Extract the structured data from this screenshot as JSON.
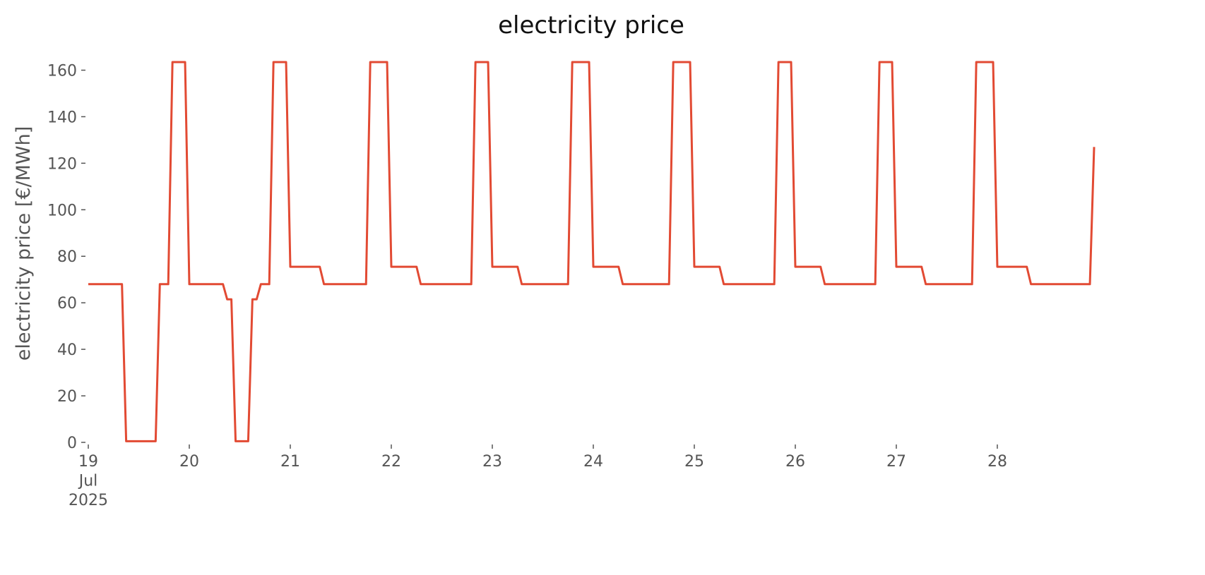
{
  "chart_data": {
    "type": "line",
    "title": "electricity price",
    "ylabel": "electricity price [€/MWh]",
    "xlim": [
      "2025-07-19 00:00",
      "2025-07-28 23:00"
    ],
    "xticks": [
      {
        "value": "2025-07-19 00:00",
        "label": "19\nJul\n2025"
      },
      {
        "value": "2025-07-20 00:00",
        "label": "20"
      },
      {
        "value": "2025-07-21 00:00",
        "label": "21"
      },
      {
        "value": "2025-07-22 00:00",
        "label": "22"
      },
      {
        "value": "2025-07-23 00:00",
        "label": "23"
      },
      {
        "value": "2025-07-24 00:00",
        "label": "24"
      },
      {
        "value": "2025-07-25 00:00",
        "label": "25"
      },
      {
        "value": "2025-07-26 00:00",
        "label": "26"
      },
      {
        "value": "2025-07-27 00:00",
        "label": "27"
      },
      {
        "value": "2025-07-28 00:00",
        "label": "28"
      }
    ],
    "ylim": [
      0,
      165
    ],
    "yticks": [
      0,
      20,
      40,
      60,
      80,
      100,
      120,
      140,
      160
    ],
    "x": [
      "2025-07-19 00:00",
      "2025-07-19 01:00",
      "2025-07-19 02:00",
      "2025-07-19 03:00",
      "2025-07-19 04:00",
      "2025-07-19 05:00",
      "2025-07-19 06:00",
      "2025-07-19 07:00",
      "2025-07-19 08:00",
      "2025-07-19 09:00",
      "2025-07-19 10:00",
      "2025-07-19 11:00",
      "2025-07-19 12:00",
      "2025-07-19 13:00",
      "2025-07-19 14:00",
      "2025-07-19 15:00",
      "2025-07-19 16:00",
      "2025-07-19 17:00",
      "2025-07-19 18:00",
      "2025-07-19 19:00",
      "2025-07-19 20:00",
      "2025-07-19 21:00",
      "2025-07-19 22:00",
      "2025-07-19 23:00",
      "2025-07-20 00:00",
      "2025-07-20 01:00",
      "2025-07-20 02:00",
      "2025-07-20 03:00",
      "2025-07-20 04:00",
      "2025-07-20 05:00",
      "2025-07-20 06:00",
      "2025-07-20 07:00",
      "2025-07-20 08:00",
      "2025-07-20 09:00",
      "2025-07-20 10:00",
      "2025-07-20 11:00",
      "2025-07-20 12:00",
      "2025-07-20 13:00",
      "2025-07-20 14:00",
      "2025-07-20 15:00",
      "2025-07-20 16:00",
      "2025-07-20 17:00",
      "2025-07-20 18:00",
      "2025-07-20 19:00",
      "2025-07-20 20:00",
      "2025-07-20 21:00",
      "2025-07-20 22:00",
      "2025-07-20 23:00",
      "2025-07-21 00:00",
      "2025-07-21 01:00",
      "2025-07-21 02:00",
      "2025-07-21 03:00",
      "2025-07-21 04:00",
      "2025-07-21 05:00",
      "2025-07-21 06:00",
      "2025-07-21 07:00",
      "2025-07-21 08:00",
      "2025-07-21 09:00",
      "2025-07-21 10:00",
      "2025-07-21 11:00",
      "2025-07-21 12:00",
      "2025-07-21 13:00",
      "2025-07-21 14:00",
      "2025-07-21 15:00",
      "2025-07-21 16:00",
      "2025-07-21 17:00",
      "2025-07-21 18:00",
      "2025-07-21 19:00",
      "2025-07-21 20:00",
      "2025-07-21 21:00",
      "2025-07-21 22:00",
      "2025-07-21 23:00",
      "2025-07-22 00:00",
      "2025-07-22 01:00",
      "2025-07-22 02:00",
      "2025-07-22 03:00",
      "2025-07-22 04:00",
      "2025-07-22 05:00",
      "2025-07-22 06:00",
      "2025-07-22 07:00",
      "2025-07-22 08:00",
      "2025-07-22 09:00",
      "2025-07-22 10:00",
      "2025-07-22 11:00",
      "2025-07-22 12:00",
      "2025-07-22 13:00",
      "2025-07-22 14:00",
      "2025-07-22 15:00",
      "2025-07-22 16:00",
      "2025-07-22 17:00",
      "2025-07-22 18:00",
      "2025-07-22 19:00",
      "2025-07-22 20:00",
      "2025-07-22 21:00",
      "2025-07-22 22:00",
      "2025-07-22 23:00",
      "2025-07-23 00:00",
      "2025-07-23 01:00",
      "2025-07-23 02:00",
      "2025-07-23 03:00",
      "2025-07-23 04:00",
      "2025-07-23 05:00",
      "2025-07-23 06:00",
      "2025-07-23 07:00",
      "2025-07-23 08:00",
      "2025-07-23 09:00",
      "2025-07-23 10:00",
      "2025-07-23 11:00",
      "2025-07-23 12:00",
      "2025-07-23 13:00",
      "2025-07-23 14:00",
      "2025-07-23 15:00",
      "2025-07-23 16:00",
      "2025-07-23 17:00",
      "2025-07-23 18:00",
      "2025-07-23 19:00",
      "2025-07-23 20:00",
      "2025-07-23 21:00",
      "2025-07-23 22:00",
      "2025-07-23 23:00",
      "2025-07-24 00:00",
      "2025-07-24 01:00",
      "2025-07-24 02:00",
      "2025-07-24 03:00",
      "2025-07-24 04:00",
      "2025-07-24 05:00",
      "2025-07-24 06:00",
      "2025-07-24 07:00",
      "2025-07-24 08:00",
      "2025-07-24 09:00",
      "2025-07-24 10:00",
      "2025-07-24 11:00",
      "2025-07-24 12:00",
      "2025-07-24 13:00",
      "2025-07-24 14:00",
      "2025-07-24 15:00",
      "2025-07-24 16:00",
      "2025-07-24 17:00",
      "2025-07-24 18:00",
      "2025-07-24 19:00",
      "2025-07-24 20:00",
      "2025-07-24 21:00",
      "2025-07-24 22:00",
      "2025-07-24 23:00",
      "2025-07-25 00:00",
      "2025-07-25 01:00",
      "2025-07-25 02:00",
      "2025-07-25 03:00",
      "2025-07-25 04:00",
      "2025-07-25 05:00",
      "2025-07-25 06:00",
      "2025-07-25 07:00",
      "2025-07-25 08:00",
      "2025-07-25 09:00",
      "2025-07-25 10:00",
      "2025-07-25 11:00",
      "2025-07-25 12:00",
      "2025-07-25 13:00",
      "2025-07-25 14:00",
      "2025-07-25 15:00",
      "2025-07-25 16:00",
      "2025-07-25 17:00",
      "2025-07-25 18:00",
      "2025-07-25 19:00",
      "2025-07-25 20:00",
      "2025-07-25 21:00",
      "2025-07-25 22:00",
      "2025-07-25 23:00",
      "2025-07-26 00:00",
      "2025-07-26 01:00",
      "2025-07-26 02:00",
      "2025-07-26 03:00",
      "2025-07-26 04:00",
      "2025-07-26 05:00",
      "2025-07-26 06:00",
      "2025-07-26 07:00",
      "2025-07-26 08:00",
      "2025-07-26 09:00",
      "2025-07-26 10:00",
      "2025-07-26 11:00",
      "2025-07-26 12:00",
      "2025-07-26 13:00",
      "2025-07-26 14:00",
      "2025-07-26 15:00",
      "2025-07-26 16:00",
      "2025-07-26 17:00",
      "2025-07-26 18:00",
      "2025-07-26 19:00",
      "2025-07-26 20:00",
      "2025-07-26 21:00",
      "2025-07-26 22:00",
      "2025-07-26 23:00",
      "2025-07-27 00:00",
      "2025-07-27 01:00",
      "2025-07-27 02:00",
      "2025-07-27 03:00",
      "2025-07-27 04:00",
      "2025-07-27 05:00",
      "2025-07-27 06:00",
      "2025-07-27 07:00",
      "2025-07-27 08:00",
      "2025-07-27 09:00",
      "2025-07-27 10:00",
      "2025-07-27 11:00",
      "2025-07-27 12:00",
      "2025-07-27 13:00",
      "2025-07-27 14:00",
      "2025-07-27 15:00",
      "2025-07-27 16:00",
      "2025-07-27 17:00",
      "2025-07-27 18:00",
      "2025-07-27 19:00",
      "2025-07-27 20:00",
      "2025-07-27 21:00",
      "2025-07-27 22:00",
      "2025-07-27 23:00",
      "2025-07-28 00:00",
      "2025-07-28 01:00",
      "2025-07-28 02:00",
      "2025-07-28 03:00",
      "2025-07-28 04:00",
      "2025-07-28 05:00",
      "2025-07-28 06:00",
      "2025-07-28 07:00",
      "2025-07-28 08:00",
      "2025-07-28 09:00",
      "2025-07-28 10:00",
      "2025-07-28 11:00",
      "2025-07-28 12:00",
      "2025-07-28 13:00",
      "2025-07-28 14:00",
      "2025-07-28 15:00",
      "2025-07-28 16:00",
      "2025-07-28 17:00",
      "2025-07-28 18:00",
      "2025-07-28 19:00",
      "2025-07-28 20:00",
      "2025-07-28 21:00",
      "2025-07-28 22:00",
      "2025-07-28 23:00"
    ],
    "series": [
      {
        "name": "electricity price",
        "color": "#e24a33",
        "values": [
          68,
          68,
          68,
          68,
          68,
          68,
          68,
          68,
          68,
          0.5,
          0.5,
          0.5,
          0.5,
          0.5,
          0.5,
          0.5,
          0.5,
          68,
          68,
          68,
          163.5,
          163.5,
          163.5,
          163.5,
          68,
          68,
          68,
          68,
          68,
          68,
          68,
          68,
          68,
          61.5,
          61.5,
          0.5,
          0.5,
          0.5,
          0.5,
          61.5,
          61.5,
          68,
          68,
          68,
          163.5,
          163.5,
          163.5,
          163.5,
          75.5,
          75.5,
          75.5,
          75.5,
          75.5,
          75.5,
          75.5,
          75.5,
          68,
          68,
          68,
          68,
          68,
          68,
          68,
          68,
          68,
          68,
          68,
          163.5,
          163.5,
          163.5,
          163.5,
          163.5,
          75.5,
          75.5,
          75.5,
          75.5,
          75.5,
          75.5,
          75.5,
          68,
          68,
          68,
          68,
          68,
          68,
          68,
          68,
          68,
          68,
          68,
          68,
          68,
          163.5,
          163.5,
          163.5,
          163.5,
          75.5,
          75.5,
          75.5,
          75.5,
          75.5,
          75.5,
          75.5,
          68,
          68,
          68,
          68,
          68,
          68,
          68,
          68,
          68,
          68,
          68,
          68,
          163.5,
          163.5,
          163.5,
          163.5,
          163.5,
          75.5,
          75.5,
          75.5,
          75.5,
          75.5,
          75.5,
          75.5,
          68,
          68,
          68,
          68,
          68,
          68,
          68,
          68,
          68,
          68,
          68,
          68,
          163.5,
          163.5,
          163.5,
          163.5,
          163.5,
          75.5,
          75.5,
          75.5,
          75.5,
          75.5,
          75.5,
          75.5,
          68,
          68,
          68,
          68,
          68,
          68,
          68,
          68,
          68,
          68,
          68,
          68,
          68,
          163.5,
          163.5,
          163.5,
          163.5,
          75.5,
          75.5,
          75.5,
          75.5,
          75.5,
          75.5,
          75.5,
          68,
          68,
          68,
          68,
          68,
          68,
          68,
          68,
          68,
          68,
          68,
          68,
          68,
          163.5,
          163.5,
          163.5,
          163.5,
          75.5,
          75.5,
          75.5,
          75.5,
          75.5,
          75.5,
          75.5,
          68,
          68,
          68,
          68,
          68,
          68,
          68,
          68,
          68,
          68,
          68,
          68,
          163.5,
          163.5,
          163.5,
          163.5,
          163.5,
          75.5,
          75.5,
          75.5,
          75.5,
          75.5,
          75.5,
          75.5,
          75.5,
          68,
          68,
          68,
          68,
          68,
          68,
          68,
          68,
          68,
          68,
          68,
          68,
          68,
          68,
          68,
          127
        ]
      }
    ]
  }
}
